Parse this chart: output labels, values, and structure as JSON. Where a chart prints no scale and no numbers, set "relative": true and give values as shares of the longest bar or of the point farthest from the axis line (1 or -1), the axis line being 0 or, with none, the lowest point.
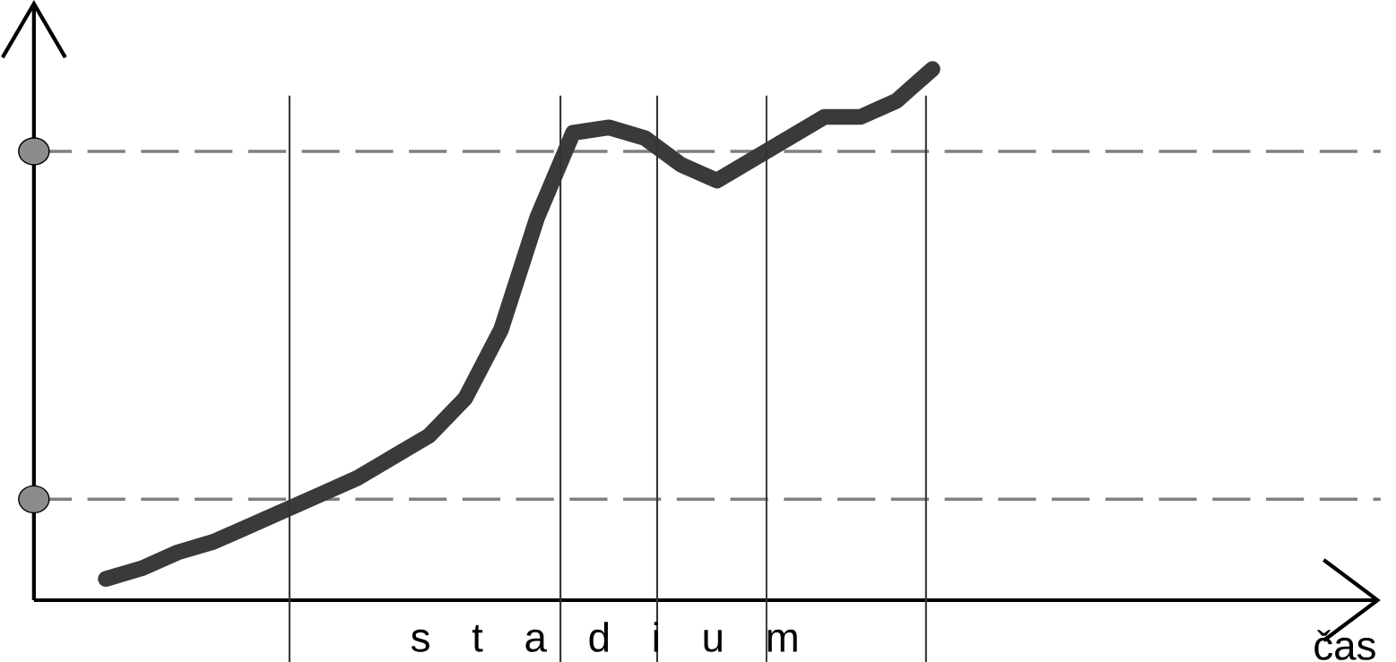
{
  "chart_data": {
    "type": "line",
    "relative": true,
    "tick_labels": false,
    "annotations": [
      "s t a d i u m",
      "čas"
    ],
    "categories": [
      null,
      null,
      null,
      null,
      null,
      null,
      null,
      null,
      null,
      null,
      null,
      null,
      null,
      null,
      null,
      null,
      null,
      null,
      null,
      null,
      null,
      null,
      null,
      null
    ],
    "series": [
      {
        "color": "#3a3a3a",
        "values": [
          0.04,
          0.06,
          0.09,
          0.11,
          0.14,
          0.17,
          0.2,
          0.23,
          0.27,
          0.31,
          0.38,
          0.51,
          0.72,
          0.88,
          0.89,
          0.87,
          0.82,
          0.79,
          0.83,
          0.87,
          0.91,
          0.91,
          0.94,
          1.0
        ]
      }
    ],
    "ref_lines": [
      {
        "axis": "y",
        "value": 0.845,
        "color": "#808080",
        "line_style": "dashed"
      },
      {
        "axis": "y",
        "value": 0.19,
        "color": "#808080",
        "line_style": "dashed"
      }
    ]
  }
}
